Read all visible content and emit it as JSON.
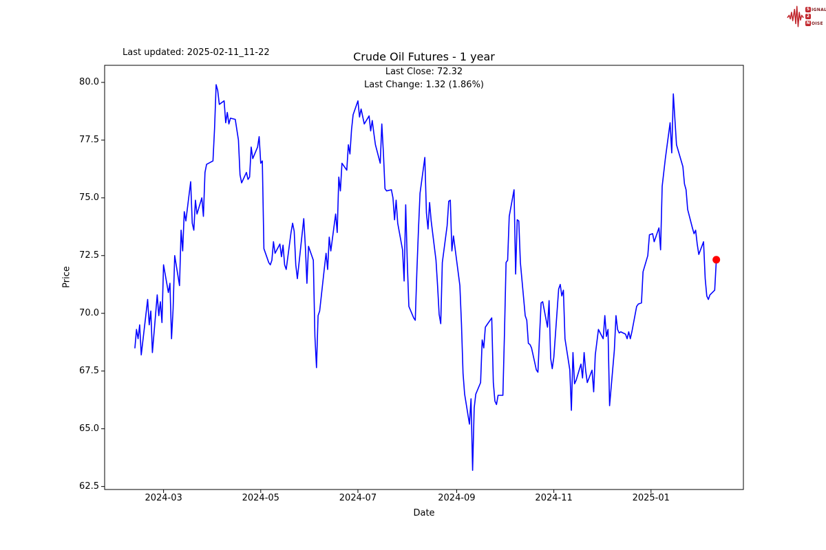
{
  "annotations": {
    "last_updated": "Last updated: 2025-02-11_11-22"
  },
  "logo": {
    "wave_color": "#c1272d",
    "rows": [
      {
        "boxed": "S",
        "rest": "IGNAL"
      },
      {
        "boxed": "2",
        "rest": ""
      },
      {
        "boxed": "N",
        "rest": "OISE"
      }
    ]
  },
  "chart_data": {
    "type": "line",
    "title": "Crude Oil Futures - 1 year",
    "annotation_line1": "Last Close: 72.32",
    "annotation_line2": "Last Change: 1.32 (1.86%)",
    "last_close": 72.32,
    "last_change": 1.32,
    "last_change_pct": "1.86%",
    "xlabel": "Date",
    "ylabel": "Price",
    "grid": false,
    "legend": "none",
    "line_color": "#0000ff",
    "marker_color": "#ff0000",
    "axis_color": "#000000",
    "x_axis_range": [
      "2024-01-24",
      "2025-02-28"
    ],
    "ylim": [
      62.37,
      80.74
    ],
    "y_ticks": [
      {
        "value": 80.0,
        "label": "80.0"
      },
      {
        "value": 77.5,
        "label": "77.5"
      },
      {
        "value": 75.0,
        "label": "75.0"
      },
      {
        "value": 72.5,
        "label": "72.5"
      },
      {
        "value": 70.0,
        "label": "70.0"
      },
      {
        "value": 67.5,
        "label": "67.5"
      },
      {
        "value": 65.0,
        "label": "65.0"
      },
      {
        "value": 62.5,
        "label": "62.5"
      }
    ],
    "x_ticks": [
      {
        "date": "2024-03-01",
        "label": "2024-03"
      },
      {
        "date": "2024-05-01",
        "label": "2024-05"
      },
      {
        "date": "2024-07-01",
        "label": "2024-07"
      },
      {
        "date": "2024-09-01",
        "label": "2024-09"
      },
      {
        "date": "2024-11-01",
        "label": "2024-11"
      },
      {
        "date": "2025-01-01",
        "label": "2025-01"
      }
    ],
    "series": [
      {
        "name": "Crude Oil Futures price",
        "points": [
          [
            "2024-02-12",
            68.5
          ],
          [
            "2024-02-13",
            69.3
          ],
          [
            "2024-02-14",
            68.9
          ],
          [
            "2024-02-15",
            69.5
          ],
          [
            "2024-02-16",
            68.2
          ],
          [
            "2024-02-20",
            70.6
          ],
          [
            "2024-02-21",
            69.5
          ],
          [
            "2024-02-22",
            70.1
          ],
          [
            "2024-02-23",
            68.3
          ],
          [
            "2024-02-26",
            70.8
          ],
          [
            "2024-02-27",
            69.9
          ],
          [
            "2024-02-28",
            70.5
          ],
          [
            "2024-02-29",
            69.6
          ],
          [
            "2024-03-01",
            72.1
          ],
          [
            "2024-03-04",
            70.9
          ],
          [
            "2024-03-05",
            71.3
          ],
          [
            "2024-03-06",
            68.9
          ],
          [
            "2024-03-07",
            70.2
          ],
          [
            "2024-03-08",
            72.5
          ],
          [
            "2024-03-11",
            71.2
          ],
          [
            "2024-03-12",
            73.6
          ],
          [
            "2024-03-13",
            72.7
          ],
          [
            "2024-03-14",
            74.4
          ],
          [
            "2024-03-15",
            74.0
          ],
          [
            "2024-03-18",
            75.7
          ],
          [
            "2024-03-19",
            73.9
          ],
          [
            "2024-03-20",
            73.6
          ],
          [
            "2024-03-21",
            74.9
          ],
          [
            "2024-03-22",
            74.3
          ],
          [
            "2024-03-25",
            75.0
          ],
          [
            "2024-03-26",
            74.2
          ],
          [
            "2024-03-27",
            76.1
          ],
          [
            "2024-03-28",
            76.45
          ],
          [
            "2024-04-01",
            76.6
          ],
          [
            "2024-04-02",
            78.0
          ],
          [
            "2024-04-03",
            79.9
          ],
          [
            "2024-04-04",
            79.65
          ],
          [
            "2024-04-05",
            79.05
          ],
          [
            "2024-04-08",
            79.2
          ],
          [
            "2024-04-09",
            78.25
          ],
          [
            "2024-04-10",
            78.7
          ],
          [
            "2024-04-11",
            78.2
          ],
          [
            "2024-04-12",
            78.45
          ],
          [
            "2024-04-15",
            78.4
          ],
          [
            "2024-04-16",
            77.95
          ],
          [
            "2024-04-17",
            77.5
          ],
          [
            "2024-04-18",
            76.0
          ],
          [
            "2024-04-19",
            75.65
          ],
          [
            "2024-04-22",
            76.1
          ],
          [
            "2024-04-23",
            75.8
          ],
          [
            "2024-04-24",
            75.9
          ],
          [
            "2024-04-25",
            77.2
          ],
          [
            "2024-04-26",
            76.7
          ],
          [
            "2024-04-29",
            77.2
          ],
          [
            "2024-04-30",
            77.65
          ],
          [
            "2024-05-01",
            76.5
          ],
          [
            "2024-05-02",
            76.6
          ],
          [
            "2024-05-03",
            72.8
          ],
          [
            "2024-05-06",
            72.2
          ],
          [
            "2024-05-07",
            72.1
          ],
          [
            "2024-05-08",
            72.3
          ],
          [
            "2024-05-09",
            73.1
          ],
          [
            "2024-05-10",
            72.6
          ],
          [
            "2024-05-13",
            73.0
          ],
          [
            "2024-05-14",
            72.45
          ],
          [
            "2024-05-15",
            72.95
          ],
          [
            "2024-05-16",
            72.1
          ],
          [
            "2024-05-17",
            71.9
          ],
          [
            "2024-05-20",
            73.5
          ],
          [
            "2024-05-21",
            73.9
          ],
          [
            "2024-05-22",
            73.55
          ],
          [
            "2024-05-23",
            72.1
          ],
          [
            "2024-05-24",
            71.5
          ],
          [
            "2024-05-28",
            74.1
          ],
          [
            "2024-05-29",
            72.9
          ],
          [
            "2024-05-30",
            71.3
          ],
          [
            "2024-05-31",
            72.9
          ],
          [
            "2024-06-03",
            72.3
          ],
          [
            "2024-06-04",
            69.0
          ],
          [
            "2024-06-05",
            67.65
          ],
          [
            "2024-06-06",
            69.9
          ],
          [
            "2024-06-07",
            70.1
          ],
          [
            "2024-06-10",
            72.0
          ],
          [
            "2024-06-11",
            72.6
          ],
          [
            "2024-06-12",
            71.9
          ],
          [
            "2024-06-13",
            73.3
          ],
          [
            "2024-06-14",
            72.7
          ],
          [
            "2024-06-17",
            74.3
          ],
          [
            "2024-06-18",
            73.5
          ],
          [
            "2024-06-19",
            75.9
          ],
          [
            "2024-06-20",
            75.3
          ],
          [
            "2024-06-21",
            76.5
          ],
          [
            "2024-06-24",
            76.2
          ],
          [
            "2024-06-25",
            77.3
          ],
          [
            "2024-06-26",
            76.9
          ],
          [
            "2024-06-27",
            77.95
          ],
          [
            "2024-06-28",
            78.6
          ],
          [
            "2024-07-01",
            79.2
          ],
          [
            "2024-07-02",
            78.5
          ],
          [
            "2024-07-03",
            78.85
          ],
          [
            "2024-07-05",
            78.2
          ],
          [
            "2024-07-08",
            78.55
          ],
          [
            "2024-07-09",
            77.9
          ],
          [
            "2024-07-10",
            78.35
          ],
          [
            "2024-07-11",
            77.8
          ],
          [
            "2024-07-12",
            77.3
          ],
          [
            "2024-07-15",
            76.5
          ],
          [
            "2024-07-16",
            78.2
          ],
          [
            "2024-07-17",
            76.95
          ],
          [
            "2024-07-18",
            75.4
          ],
          [
            "2024-07-19",
            75.3
          ],
          [
            "2024-07-22",
            75.35
          ],
          [
            "2024-07-23",
            75.0
          ],
          [
            "2024-07-24",
            74.05
          ],
          [
            "2024-07-25",
            74.9
          ],
          [
            "2024-07-26",
            73.9
          ],
          [
            "2024-07-29",
            72.75
          ],
          [
            "2024-07-30",
            71.4
          ],
          [
            "2024-07-31",
            74.7
          ],
          [
            "2024-08-01",
            72.2
          ],
          [
            "2024-08-02",
            70.3
          ],
          [
            "2024-08-05",
            69.8
          ],
          [
            "2024-08-06",
            69.7
          ],
          [
            "2024-08-07",
            71.8
          ],
          [
            "2024-08-08",
            73.6
          ],
          [
            "2024-08-09",
            75.2
          ],
          [
            "2024-08-12",
            76.75
          ],
          [
            "2024-08-13",
            74.35
          ],
          [
            "2024-08-14",
            73.65
          ],
          [
            "2024-08-15",
            74.8
          ],
          [
            "2024-08-16",
            74.0
          ],
          [
            "2024-08-19",
            72.3
          ],
          [
            "2024-08-20",
            71.2
          ],
          [
            "2024-08-21",
            69.95
          ],
          [
            "2024-08-22",
            69.55
          ],
          [
            "2024-08-23",
            72.2
          ],
          [
            "2024-08-26",
            73.8
          ],
          [
            "2024-08-27",
            74.85
          ],
          [
            "2024-08-28",
            74.9
          ],
          [
            "2024-08-29",
            72.7
          ],
          [
            "2024-08-30",
            73.35
          ],
          [
            "2024-09-03",
            71.2
          ],
          [
            "2024-09-04",
            69.55
          ],
          [
            "2024-09-05",
            67.4
          ],
          [
            "2024-09-06",
            66.5
          ],
          [
            "2024-09-09",
            65.2
          ],
          [
            "2024-09-10",
            66.3
          ],
          [
            "2024-09-11",
            63.2
          ],
          [
            "2024-09-12",
            65.9
          ],
          [
            "2024-09-13",
            66.5
          ],
          [
            "2024-09-16",
            67.0
          ],
          [
            "2024-09-17",
            68.85
          ],
          [
            "2024-09-18",
            68.5
          ],
          [
            "2024-09-19",
            69.4
          ],
          [
            "2024-09-20",
            69.5
          ],
          [
            "2024-09-23",
            69.8
          ],
          [
            "2024-09-24",
            67.0
          ],
          [
            "2024-09-25",
            66.2
          ],
          [
            "2024-09-26",
            66.05
          ],
          [
            "2024-09-27",
            66.45
          ],
          [
            "2024-09-30",
            66.45
          ],
          [
            "2024-10-01",
            69.15
          ],
          [
            "2024-10-02",
            72.2
          ],
          [
            "2024-10-03",
            72.3
          ],
          [
            "2024-10-04",
            74.2
          ],
          [
            "2024-10-07",
            75.35
          ],
          [
            "2024-10-08",
            71.7
          ],
          [
            "2024-10-09",
            74.05
          ],
          [
            "2024-10-10",
            74.0
          ],
          [
            "2024-10-11",
            72.2
          ],
          [
            "2024-10-14",
            69.9
          ],
          [
            "2024-10-15",
            69.7
          ],
          [
            "2024-10-16",
            68.7
          ],
          [
            "2024-10-17",
            68.65
          ],
          [
            "2024-10-18",
            68.5
          ],
          [
            "2024-10-21",
            67.55
          ],
          [
            "2024-10-22",
            67.45
          ],
          [
            "2024-10-23",
            69.0
          ],
          [
            "2024-10-24",
            70.45
          ],
          [
            "2024-10-25",
            70.5
          ],
          [
            "2024-10-28",
            69.4
          ],
          [
            "2024-10-29",
            70.55
          ],
          [
            "2024-10-30",
            68.05
          ],
          [
            "2024-10-31",
            67.6
          ],
          [
            "2024-11-01",
            68.1
          ],
          [
            "2024-11-04",
            71.05
          ],
          [
            "2024-11-05",
            71.25
          ],
          [
            "2024-11-06",
            70.75
          ],
          [
            "2024-11-07",
            71.0
          ],
          [
            "2024-11-08",
            68.9
          ],
          [
            "2024-11-11",
            67.55
          ],
          [
            "2024-11-12",
            65.8
          ],
          [
            "2024-11-13",
            68.3
          ],
          [
            "2024-11-14",
            66.95
          ],
          [
            "2024-11-15",
            67.1
          ],
          [
            "2024-11-18",
            67.8
          ],
          [
            "2024-11-19",
            67.2
          ],
          [
            "2024-11-20",
            68.3
          ],
          [
            "2024-11-21",
            67.5
          ],
          [
            "2024-11-22",
            67.0
          ],
          [
            "2024-11-25",
            67.54
          ],
          [
            "2024-11-26",
            66.6
          ],
          [
            "2024-11-27",
            68.2
          ],
          [
            "2024-11-29",
            69.3
          ],
          [
            "2024-12-02",
            68.9
          ],
          [
            "2024-12-03",
            69.9
          ],
          [
            "2024-12-04",
            69.0
          ],
          [
            "2024-12-05",
            69.3
          ],
          [
            "2024-12-06",
            66.0
          ],
          [
            "2024-12-09",
            68.4
          ],
          [
            "2024-12-10",
            69.9
          ],
          [
            "2024-12-11",
            69.3
          ],
          [
            "2024-12-12",
            69.15
          ],
          [
            "2024-12-13",
            69.2
          ],
          [
            "2024-12-16",
            69.1
          ],
          [
            "2024-12-17",
            68.9
          ],
          [
            "2024-12-18",
            69.2
          ],
          [
            "2024-12-19",
            68.9
          ],
          [
            "2024-12-20",
            69.2
          ],
          [
            "2024-12-23",
            70.3
          ],
          [
            "2024-12-24",
            70.4
          ],
          [
            "2024-12-26",
            70.45
          ],
          [
            "2024-12-27",
            71.8
          ],
          [
            "2024-12-30",
            72.5
          ],
          [
            "2024-12-31",
            73.4
          ],
          [
            "2025-01-02",
            73.45
          ],
          [
            "2025-01-03",
            73.1
          ],
          [
            "2025-01-06",
            73.7
          ],
          [
            "2025-01-07",
            72.75
          ],
          [
            "2025-01-08",
            75.5
          ],
          [
            "2025-01-09",
            76.1
          ],
          [
            "2025-01-10",
            76.7
          ],
          [
            "2025-01-13",
            78.25
          ],
          [
            "2025-01-14",
            76.95
          ],
          [
            "2025-01-15",
            79.5
          ],
          [
            "2025-01-16",
            78.4
          ],
          [
            "2025-01-17",
            77.3
          ],
          [
            "2025-01-21",
            76.35
          ],
          [
            "2025-01-22",
            75.6
          ],
          [
            "2025-01-23",
            75.35
          ],
          [
            "2025-01-24",
            74.5
          ],
          [
            "2025-01-27",
            73.7
          ],
          [
            "2025-01-28",
            73.45
          ],
          [
            "2025-01-29",
            73.6
          ],
          [
            "2025-01-30",
            73.0
          ],
          [
            "2025-01-31",
            72.55
          ],
          [
            "2025-02-03",
            73.1
          ],
          [
            "2025-02-04",
            71.5
          ],
          [
            "2025-02-05",
            70.75
          ],
          [
            "2025-02-06",
            70.6
          ],
          [
            "2025-02-07",
            70.8
          ],
          [
            "2025-02-10",
            71.0
          ],
          [
            "2025-02-11",
            72.32
          ]
        ]
      }
    ]
  }
}
